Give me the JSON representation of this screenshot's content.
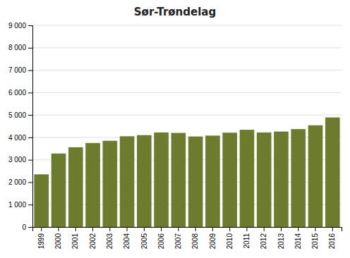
{
  "chart_data": {
    "type": "bar",
    "title": "Sør-Trøndelag",
    "categories": [
      "1999",
      "2000",
      "2001",
      "2002",
      "2003",
      "2004",
      "2005",
      "2006",
      "2007",
      "2008",
      "2009",
      "2010",
      "2011",
      "2012",
      "2013",
      "2014",
      "2015",
      "2016"
    ],
    "values": [
      2350,
      3280,
      3560,
      3750,
      3850,
      4050,
      4100,
      4220,
      4200,
      4040,
      4080,
      4210,
      4340,
      4220,
      4260,
      4370,
      4540,
      4890
    ],
    "color": "#6b7c2e",
    "ylim": [
      0,
      9000
    ],
    "yticks": [
      0,
      {
        "value": 1000,
        "label": "1 000"
      },
      {
        "value": 2000,
        "label": "2 000"
      },
      {
        "value": 3000,
        "label": "3 000"
      },
      {
        "value": 4000,
        "label": "4 000"
      },
      {
        "value": 5000,
        "label": "5 000"
      },
      {
        "value": 6000,
        "label": "6 000"
      },
      {
        "value": 7000,
        "label": "7 000"
      },
      {
        "value": 8000,
        "label": "8 000"
      },
      {
        "value": 9000,
        "label": "9 000"
      }
    ],
    "grid": true
  }
}
